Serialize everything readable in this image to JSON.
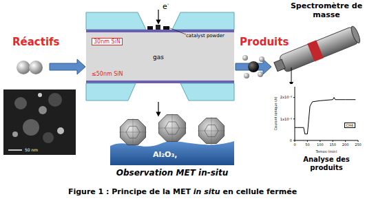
{
  "labels": {
    "reactants": "Réactifs",
    "products": "Produits",
    "spectrometer": "Spectromètre de masse",
    "analysis": "Analyse des produits",
    "observation": "Observation MET in-situ",
    "substrate": "Al₂O₃,",
    "electron": {
      "base": "e",
      "sup": "-"
    }
  },
  "cell": {
    "top_membrane": "30nm SiN",
    "bottom_membrane": "≤50nm SiN",
    "gas": "gas",
    "catalyst": "catalyst powder"
  },
  "micrograph": {
    "scale_bar": "50 nm"
  },
  "caption": {
    "before": "Figure 1 : Principe de la MET ",
    "italic": "in situ",
    "after": " en cellule fermée"
  },
  "chart_data": {
    "type": "line",
    "x_label": "Temps (min)",
    "y_label": "Courant ionique (A)",
    "x": [
      0,
      10,
      35,
      40,
      50,
      60,
      70,
      100,
      150,
      155,
      160,
      200,
      240
    ],
    "series": [
      {
        "name": "CH4",
        "color": "#000000",
        "values": [
          6e-10,
          6e-10,
          6e-10,
          3e-10,
          3e-10,
          1.6e-09,
          1.8e-09,
          1.85e-09,
          1.9e-09,
          2e-09,
          1.9e-09,
          1.9e-09,
          1.9e-09
        ]
      }
    ],
    "xlim": [
      0,
      250
    ],
    "xticks": [
      0,
      50,
      100,
      150,
      200,
      250
    ],
    "ylim": [
      0,
      2.5e-09
    ],
    "yticks": [
      {
        "value": 0,
        "label": "0"
      },
      {
        "value": 1e-09,
        "label": "1x10⁻⁹"
      },
      {
        "value": 2e-09,
        "label": "2x10⁻⁹"
      }
    ]
  }
}
